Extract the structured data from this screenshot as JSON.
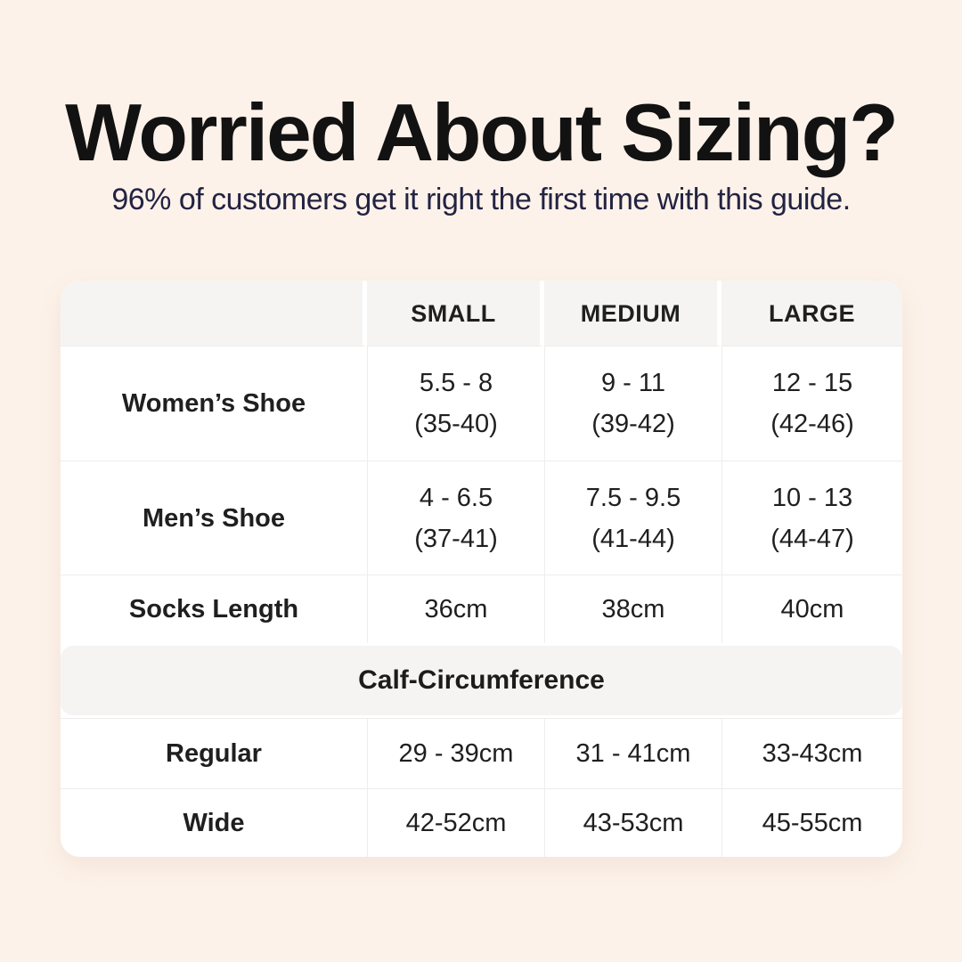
{
  "page": {
    "background_color": "#fdf2e9",
    "card_color": "#ffffff",
    "header_cell_color": "#f5f4f3",
    "subtitle_color": "#232343",
    "title_color": "#121212"
  },
  "heading": {
    "title": "Worried About Sizing?",
    "subtitle": "96% of customers get it right the first time with this guide."
  },
  "table": {
    "headers": [
      "SMALL",
      "MEDIUM",
      "LARGE"
    ],
    "shoe_rows": [
      {
        "label": "Women’s Shoe",
        "small": [
          "5.5 - 8",
          "(35-40)"
        ],
        "medium": [
          "9 - 11",
          "(39-42)"
        ],
        "large": [
          "12 - 15",
          "(42-46)"
        ]
      },
      {
        "label": "Men’s Shoe",
        "small": [
          "4 - 6.5",
          "(37-41)"
        ],
        "medium": [
          "7.5 - 9.5",
          "(41-44)"
        ],
        "large": [
          "10 - 13",
          "(44-47)"
        ]
      }
    ],
    "socks_row": {
      "label": "Socks Length",
      "small": "36cm",
      "medium": "38cm",
      "large": "40cm"
    },
    "calf_section_label": "Calf-Circumference",
    "calf_rows": [
      {
        "label": "Regular",
        "small": "29 - 39cm",
        "medium": "31 - 41cm",
        "large": "33-43cm"
      },
      {
        "label": "Wide",
        "small": "42-52cm",
        "medium": "43-53cm",
        "large": "45-55cm"
      }
    ]
  }
}
